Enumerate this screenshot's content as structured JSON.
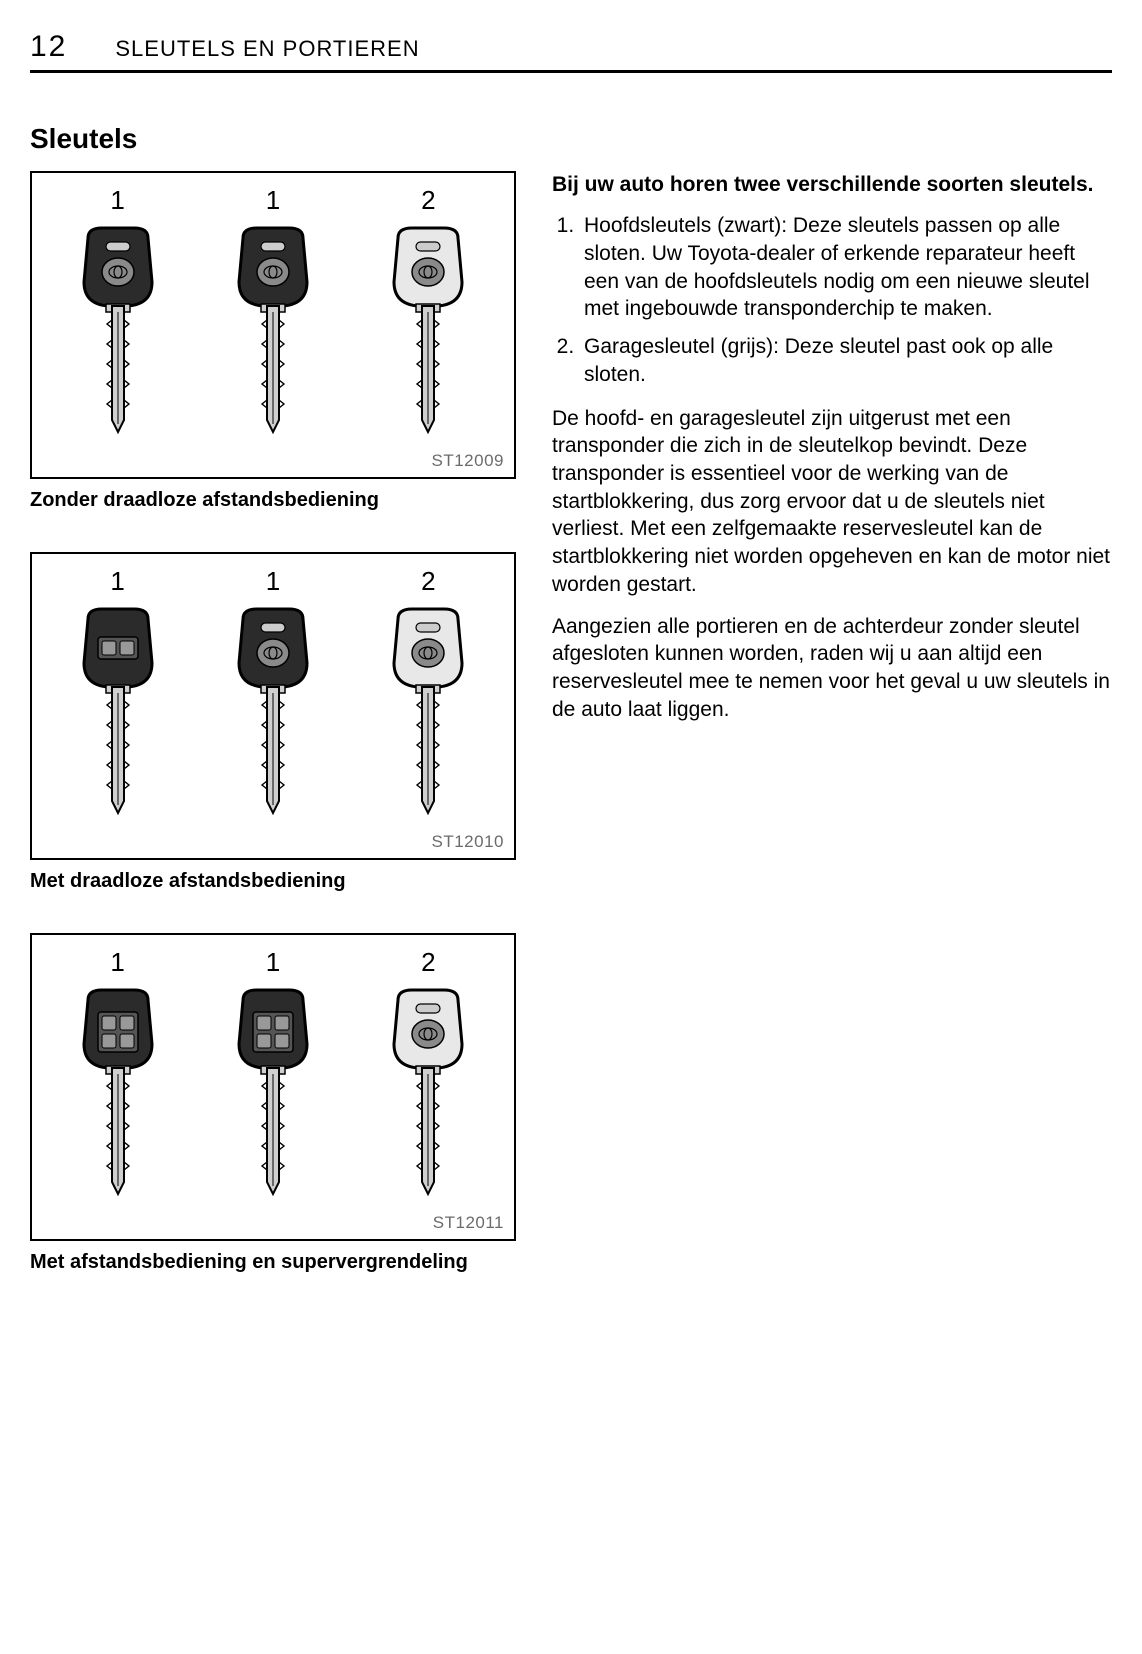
{
  "header": {
    "page_number": "12",
    "chapter": "SLEUTELS EN PORTIEREN"
  },
  "section": {
    "heading": "Sleutels"
  },
  "figures": [
    {
      "id": "ST12009",
      "caption": "Zonder draadloze afstandsbediening",
      "keys": [
        {
          "num": "1",
          "head_fill": "#2b2b2b",
          "remote": false,
          "button_rows": 0
        },
        {
          "num": "1",
          "head_fill": "#2b2b2b",
          "remote": false,
          "button_rows": 0
        },
        {
          "num": "2",
          "head_fill": "#e8e8e8",
          "remote": false,
          "button_rows": 0
        }
      ]
    },
    {
      "id": "ST12010",
      "caption": "Met draadloze afstandsbediening",
      "keys": [
        {
          "num": "1",
          "head_fill": "#2b2b2b",
          "remote": true,
          "button_rows": 1
        },
        {
          "num": "1",
          "head_fill": "#2b2b2b",
          "remote": false,
          "button_rows": 0
        },
        {
          "num": "2",
          "head_fill": "#e8e8e8",
          "remote": false,
          "button_rows": 0
        }
      ]
    },
    {
      "id": "ST12011",
      "caption": "Met afstandsbediening en supervergrendeling",
      "keys": [
        {
          "num": "1",
          "head_fill": "#2b2b2b",
          "remote": true,
          "button_rows": 2
        },
        {
          "num": "1",
          "head_fill": "#2b2b2b",
          "remote": true,
          "button_rows": 2
        },
        {
          "num": "2",
          "head_fill": "#e8e8e8",
          "remote": false,
          "button_rows": 0
        }
      ]
    }
  ],
  "right": {
    "intro": "Bij uw auto horen twee verschillende soorten sleutels.",
    "list": [
      "Hoofdsleutels (zwart): Deze sleutels passen op alle sloten. Uw Toyota-dealer of erkende reparateur heeft een van de hoofdsleutels nodig om een nieuwe sleutel met ingebouwde transponderchip te maken.",
      "Garagesleutel (grijs): Deze sleutel past ook op alle sloten."
    ],
    "para1": "De hoofd- en garagesleutel zijn uitgerust met een transponder die zich in de sleutelkop bevindt. Deze transponder is essentieel voor de werking van de startblokkering, dus zorg ervoor dat u de sleutels niet verliest. Met een zelfgemaakte reservesleutel kan de startblokkering niet worden opgeheven en kan de motor niet worden gestart.",
    "para2": "Aangezien alle portieren en de achterdeur zonder sleutel afgesloten kunnen worden, raden wij u aan altijd een reservesleutel mee te nemen voor het geval u uw sleutels in de auto laat liggen."
  },
  "styling": {
    "page_bg": "#ffffff",
    "text_color": "#000000",
    "rule_color": "#000000",
    "blade_fill": "#cfcfcf",
    "blade_stroke": "#000000",
    "logo_fill": "#8a8a8a"
  }
}
